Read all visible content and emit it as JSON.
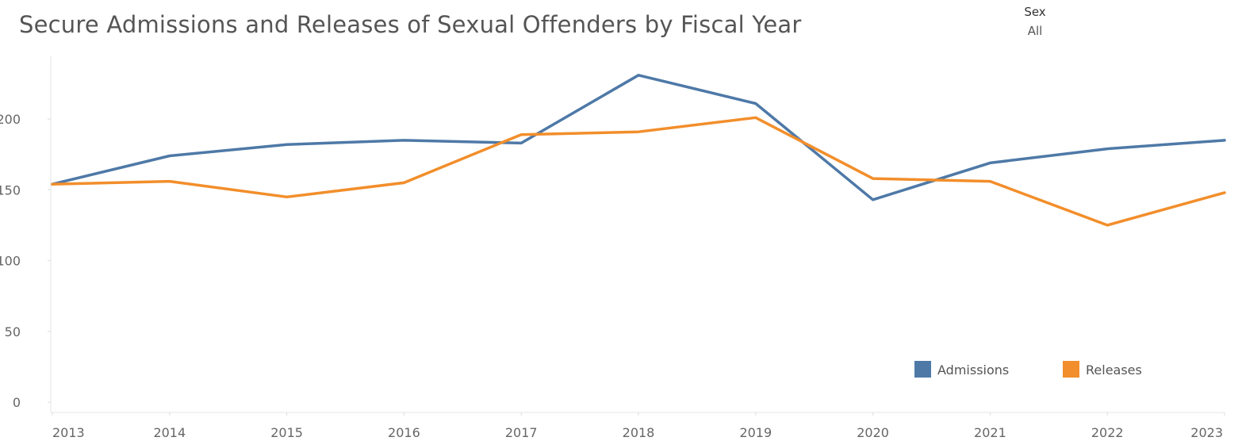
{
  "title": "Secure Admissions and Releases of Sexual Offenders by Fiscal Year",
  "filter": {
    "label": "Sex",
    "value": "All"
  },
  "chart_data": {
    "type": "line",
    "title": "Secure Admissions and Releases of Sexual Offenders by Fiscal Year",
    "xlabel": "",
    "ylabel": "",
    "x": [
      "2013",
      "2014",
      "2015",
      "2016",
      "2017",
      "2018",
      "2019",
      "2020",
      "2021",
      "2022",
      "2023"
    ],
    "yticks": [
      0,
      50,
      100,
      150,
      200
    ],
    "ylim": [
      0,
      232
    ],
    "grid": false,
    "legend_position": "bottom-right",
    "series": [
      {
        "name": "Admissions",
        "color": "#4e79a7",
        "values": [
          154,
          174,
          182,
          185,
          183,
          231,
          211,
          143,
          169,
          179,
          185
        ]
      },
      {
        "name": "Releases",
        "color": "#f28e2b",
        "values": [
          154,
          156,
          145,
          155,
          189,
          191,
          201,
          158,
          156,
          125,
          148
        ]
      }
    ]
  }
}
